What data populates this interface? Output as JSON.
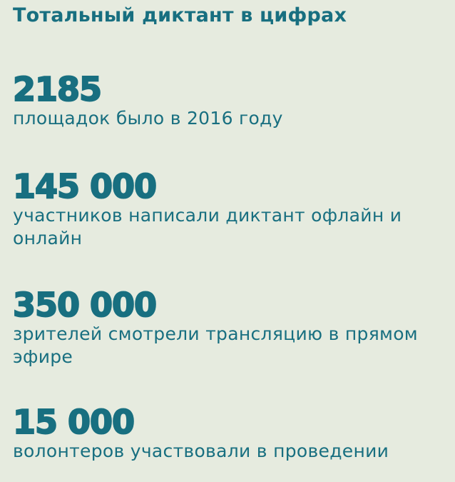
{
  "title": "Тотальный диктант в цифрах",
  "stats": [
    {
      "value": "2185",
      "label": "площадок было в 2016 году"
    },
    {
      "value": "145 000",
      "label": "участников написали диктант офлайн и онлайн"
    },
    {
      "value": "350 000",
      "label": "зрителей смотрели трансляцию в прямом эфире"
    },
    {
      "value": "15 000",
      "label": "волонтеров участвовали в проведении"
    }
  ],
  "colors": {
    "background": "#e6ebdf",
    "text": "#186f80"
  }
}
